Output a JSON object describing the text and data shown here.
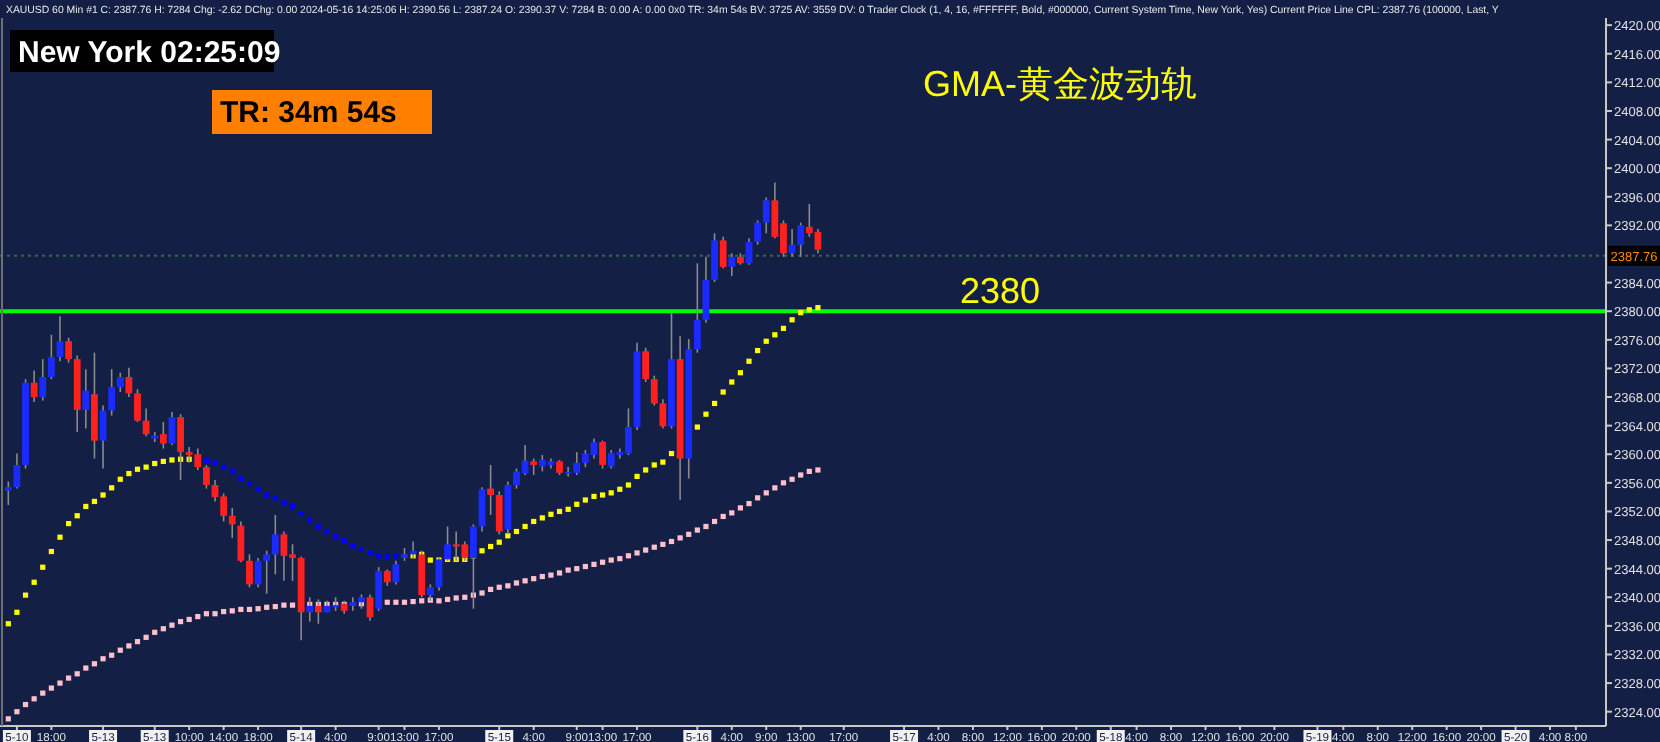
{
  "chart_data": {
    "type": "candlestick",
    "title": "GMA-黄金波动轨",
    "annotations": [
      "XAUUSD  60 Min  #1  C: 2387.76  H: 7284  Chg: -2.62  DChg: 0.00  2024-05-16 14:25:06  H: 2390.56  L: 2387.24  O: 2390.37  V: 7284  B: 0.00  A: 0.00  0x0  TR: 34m 54s  BV: 3725  AV: 3559  DV: 0  Trader Clock  (1, 4, 16, #FFFFFF, Bold, #000000, Current System Time, New York, Yes)  Current Price Line  CPL: 2387.76  (100000, Last, Y",
      "New York 02:25:09",
      "TR: 34m 54s"
    ],
    "categories": [
      null,
      "5-10",
      null,
      null,
      null,
      "18:00",
      null,
      null,
      null,
      null,
      null,
      "5-13",
      null,
      null,
      null,
      null,
      null,
      "5-13",
      null,
      null,
      null,
      "10:00",
      null,
      null,
      null,
      "14:00",
      null,
      null,
      null,
      "18:00",
      null,
      null,
      null,
      null,
      "5-14",
      null,
      null,
      null,
      "4:00",
      null,
      null,
      null,
      null,
      "9:00",
      null,
      null,
      "13:00",
      null,
      null,
      null,
      "17:00",
      null,
      null,
      null,
      null,
      null,
      null,
      "5-15",
      null,
      null,
      null,
      "4:00",
      null,
      null,
      null,
      null,
      "9:00",
      null,
      null,
      "13:00",
      null,
      null,
      null,
      "17:00",
      null,
      null,
      null,
      null,
      null,
      null,
      "5-16",
      null,
      null,
      null,
      "4:00",
      null,
      null,
      null,
      "9:00",
      null,
      null,
      null,
      "13:00",
      null,
      null,
      null,
      null,
      "17:00",
      null,
      null,
      null,
      null,
      null,
      null,
      "5-17",
      null,
      null,
      null,
      "4:00",
      null,
      null,
      null,
      "8:00",
      null,
      null,
      null,
      "12:00",
      null,
      null,
      null,
      "16:00",
      null,
      null,
      null,
      "20:00",
      null,
      null,
      null,
      "5-18",
      null,
      null,
      "4:00",
      null,
      null,
      null,
      "8:00",
      null,
      null,
      null,
      "12:00",
      null,
      null,
      null,
      "16:00",
      null,
      null,
      null,
      "20:00",
      null,
      null,
      null,
      null,
      "5-19",
      null,
      null,
      "4:00",
      null,
      null,
      null,
      "8:00",
      null,
      null,
      null,
      "12:00",
      null,
      null,
      null,
      "16:00",
      null,
      null,
      null,
      "20:00",
      null,
      null,
      null,
      "5-20",
      null,
      null,
      null,
      "4:00",
      null,
      null,
      "8:00",
      null,
      null,
      null
    ],
    "ohlc": [
      [
        2354.9,
        2356.2,
        2352.9,
        2355.4
      ],
      [
        2355.4,
        2360.1,
        2355.2,
        2358.5
      ],
      [
        2358.5,
        2370.5,
        2358.0,
        2370.0
      ],
      [
        2370.0,
        2371.7,
        2367.3,
        2368.0
      ],
      [
        2368.0,
        2373.3,
        2367.5,
        2370.8
      ],
      [
        2370.8,
        2376.7,
        2370.5,
        2373.6
      ],
      [
        2373.6,
        2379.3,
        2373.0,
        2375.8
      ],
      [
        2375.8,
        2376.3,
        2372.8,
        2373.3
      ],
      [
        2373.3,
        2373.8,
        2363.1,
        2366.2
      ],
      [
        2366.2,
        2371.9,
        2363.6,
        2368.9
      ],
      [
        2368.4,
        2374.2,
        2359.4,
        2361.9
      ],
      [
        2361.9,
        2366.8,
        2358.0,
        2366.1
      ],
      [
        2366.1,
        2371.9,
        2365.4,
        2369.4
      ],
      [
        2369.4,
        2371.4,
        2368.7,
        2370.8
      ],
      [
        2370.8,
        2372.1,
        2368.0,
        2368.5
      ],
      [
        2368.5,
        2369.1,
        2364.5,
        2364.7
      ],
      [
        2364.7,
        2366.4,
        2362.5,
        2362.8
      ],
      [
        2362.2,
        2363.1,
        2361.7,
        2362.6
      ],
      [
        2362.8,
        2364.5,
        2360.8,
        2361.5
      ],
      [
        2361.5,
        2365.9,
        2361.3,
        2365.2
      ],
      [
        2365.2,
        2365.6,
        2356.4,
        2360.3
      ],
      [
        2360.3,
        2361.0,
        2358.8,
        2359.9
      ],
      [
        2360.0,
        2360.8,
        2357.8,
        2358.2
      ],
      [
        2358.2,
        2358.5,
        2355.2,
        2355.7
      ],
      [
        2355.7,
        2356.4,
        2353.4,
        2354.0
      ],
      [
        2354.1,
        2354.5,
        2350.6,
        2351.4
      ],
      [
        2351.4,
        2352.5,
        2348.3,
        2350.2
      ],
      [
        2350.0,
        2350.6,
        2344.9,
        2345.1
      ],
      [
        2345.1,
        2346.0,
        2341.4,
        2341.8
      ],
      [
        2341.8,
        2345.5,
        2341.4,
        2345.1
      ],
      [
        2345.1,
        2346.5,
        2340.5,
        2346.0
      ],
      [
        2346.0,
        2351.5,
        2343.2,
        2348.8
      ],
      [
        2348.8,
        2349.2,
        2342.3,
        2345.8
      ],
      [
        2346.0,
        2347.4,
        2342.3,
        2345.5
      ],
      [
        2345.5,
        2345.7,
        2334.0,
        2337.9
      ],
      [
        2337.9,
        2340.0,
        2336.6,
        2338.8
      ],
      [
        2338.8,
        2339.7,
        2336.3,
        2337.9
      ],
      [
        2337.9,
        2339.5,
        2337.9,
        2338.8
      ],
      [
        2338.6,
        2340.0,
        2338.1,
        2338.9
      ],
      [
        2339.1,
        2339.5,
        2337.7,
        2338.1
      ],
      [
        2338.8,
        2340.0,
        2338.1,
        2339.3
      ],
      [
        2339.3,
        2340.4,
        2338.4,
        2340.0
      ],
      [
        2340.0,
        2340.4,
        2336.7,
        2337.2
      ],
      [
        2338.4,
        2344.2,
        2338.1,
        2343.7
      ],
      [
        2343.7,
        2343.9,
        2341.6,
        2342.1
      ],
      [
        2342.1,
        2345.1,
        2341.8,
        2344.6
      ],
      [
        2345.5,
        2346.9,
        2345.1,
        2346.0
      ],
      [
        2346.0,
        2347.8,
        2345.5,
        2346.5
      ],
      [
        2346.0,
        2346.5,
        2340.0,
        2340.3
      ],
      [
        2340.3,
        2341.8,
        2339.5,
        2341.4
      ],
      [
        2341.4,
        2345.6,
        2340.9,
        2345.3
      ],
      [
        2345.3,
        2349.9,
        2345.1,
        2347.4
      ],
      [
        2347.4,
        2349.2,
        2345.1,
        2347.1
      ],
      [
        2347.4,
        2347.8,
        2345.1,
        2345.5
      ],
      [
        2345.5,
        2350.2,
        2338.4,
        2349.9
      ],
      [
        2349.9,
        2355.4,
        2349.2,
        2355.1
      ],
      [
        2355.2,
        2358.5,
        2351.5,
        2354.3
      ],
      [
        2354.3,
        2354.8,
        2348.8,
        2349.2
      ],
      [
        2349.5,
        2356.2,
        2348.8,
        2355.7
      ],
      [
        2355.7,
        2358.0,
        2355.2,
        2357.6
      ],
      [
        2357.3,
        2361.3,
        2357.1,
        2359.1
      ],
      [
        2359.0,
        2359.4,
        2357.1,
        2358.5
      ],
      [
        2358.3,
        2359.9,
        2357.6,
        2359.2
      ],
      [
        2358.5,
        2359.4,
        2358.0,
        2359.0
      ],
      [
        2359.0,
        2359.2,
        2357.1,
        2357.4
      ],
      [
        2357.3,
        2358.2,
        2356.9,
        2357.5
      ],
      [
        2357.4,
        2360.3,
        2357.1,
        2358.8
      ],
      [
        2358.8,
        2360.6,
        2358.2,
        2360.1
      ],
      [
        2359.9,
        2362.2,
        2359.4,
        2361.7
      ],
      [
        2361.7,
        2361.9,
        2358.0,
        2358.5
      ],
      [
        2358.3,
        2360.6,
        2358.0,
        2360.2
      ],
      [
        2359.9,
        2360.8,
        2359.4,
        2360.3
      ],
      [
        2360.1,
        2366.4,
        2359.9,
        2363.8
      ],
      [
        2363.8,
        2375.6,
        2363.4,
        2374.4
      ],
      [
        2374.4,
        2374.9,
        2370.1,
        2370.5
      ],
      [
        2370.5,
        2371.0,
        2366.8,
        2367.1
      ],
      [
        2367.1,
        2367.7,
        2363.6,
        2363.9
      ],
      [
        2363.9,
        2379.8,
        2363.6,
        2373.3
      ],
      [
        2373.3,
        2376.5,
        2353.6,
        2359.4
      ],
      [
        2359.4,
        2376.1,
        2356.6,
        2374.7
      ],
      [
        2374.7,
        2386.7,
        2374.2,
        2378.8
      ],
      [
        2378.8,
        2387.6,
        2378.4,
        2384.4
      ],
      [
        2384.4,
        2390.9,
        2384.1,
        2389.9
      ],
      [
        2389.9,
        2390.4,
        2386.0,
        2386.2
      ],
      [
        2386.2,
        2388.1,
        2384.9,
        2387.6
      ],
      [
        2387.6,
        2388.1,
        2386.5,
        2386.7
      ],
      [
        2386.7,
        2390.2,
        2386.5,
        2389.7
      ],
      [
        2389.7,
        2392.7,
        2389.3,
        2392.4
      ],
      [
        2392.4,
        2395.9,
        2390.9,
        2395.5
      ],
      [
        2395.5,
        2398.0,
        2390.2,
        2390.4
      ],
      [
        2392.3,
        2392.7,
        2387.6,
        2388.1
      ],
      [
        2388.1,
        2391.5,
        2387.6,
        2389.3
      ],
      [
        2389.3,
        2392.4,
        2387.6,
        2392.0
      ],
      [
        2391.8,
        2395.0,
        2390.4,
        2390.9
      ],
      [
        2391.1,
        2391.5,
        2388.1,
        2388.6
      ],
      null,
      null,
      null,
      null,
      null,
      null,
      null,
      null,
      null,
      null,
      null,
      null,
      null,
      null,
      null,
      null,
      null,
      null,
      null,
      null,
      null,
      null,
      null,
      null,
      null,
      null,
      null,
      null,
      null,
      null,
      null,
      null,
      null,
      null,
      null,
      null,
      null,
      null,
      null,
      null,
      null,
      null,
      null,
      null,
      null,
      null,
      null,
      null,
      null,
      null,
      null,
      null,
      null,
      null,
      null,
      null,
      null,
      null,
      null,
      null,
      null,
      null,
      null,
      null,
      null,
      null,
      null,
      null,
      null,
      null,
      null,
      null,
      null,
      null,
      null,
      null,
      null,
      null,
      null,
      null,
      null,
      null,
      null,
      null,
      null,
      null,
      null,
      null,
      null,
      null,
      null
    ],
    "series": [
      {
        "type": "scatter",
        "marker": "square",
        "color": "#ffff00",
        "values": [
          2336.3,
          2337.9,
          2340.3,
          2342.1,
          2344.2,
          2346.4,
          2348.4,
          2350.3,
          2351.4,
          2352.7,
          2353.4,
          2354.3,
          2355.3,
          2356.5,
          2357.3,
          2357.9,
          2358.2,
          2358.7,
          2359.0,
          2359.2,
          2359.3,
          2359.3,
          null,
          null,
          null,
          null,
          null,
          null,
          null,
          null,
          null,
          null,
          null,
          null,
          null,
          null,
          null,
          null,
          null,
          null,
          null,
          null,
          null,
          null,
          null,
          null,
          null,
          2345.8,
          2346.0,
          2345.2,
          2345.2,
          2345.3,
          2345.3,
          2345.3,
          2345.8,
          2346.5,
          2347.1,
          2347.7,
          2348.6,
          2349.2,
          2349.9,
          2350.6,
          2351.1,
          2351.6,
          2352.0,
          2352.3,
          2353.0,
          2353.6,
          2354.1,
          2354.3,
          2354.6,
          2355.1,
          2355.7,
          2356.9,
          2357.8,
          2358.5,
          2358.9,
          2360.1,
          null,
          null,
          2363.8,
          2365.6,
          2367.1,
          2368.7,
          2370.1,
          2371.4,
          2373.0,
          2374.5,
          2375.8,
          2376.7,
          2377.6,
          2378.8,
          2379.8,
          2380.2,
          2380.5,
          null,
          null,
          null,
          null,
          null,
          null,
          null,
          null,
          null,
          null,
          null,
          null,
          null,
          null,
          null,
          null,
          null,
          null,
          null,
          null,
          null,
          null,
          null,
          null,
          null,
          null,
          null,
          null,
          null,
          null,
          null,
          null,
          null,
          null,
          null,
          null,
          null,
          null,
          null,
          null,
          null,
          null,
          null,
          null,
          null,
          null,
          null,
          null,
          null,
          null,
          null,
          null,
          null,
          null,
          null,
          null,
          null,
          null,
          null,
          null,
          null,
          null,
          null,
          null,
          null,
          null,
          null,
          null,
          null,
          null,
          null,
          null,
          null,
          null,
          null,
          null,
          null,
          null,
          null,
          null,
          null,
          null,
          null,
          null,
          null,
          null,
          null,
          null,
          null,
          null,
          null
        ]
      },
      {
        "type": "scatter",
        "marker": "square",
        "color": "#0000ff",
        "values": [
          null,
          null,
          null,
          null,
          null,
          null,
          null,
          null,
          null,
          null,
          null,
          null,
          null,
          null,
          null,
          null,
          null,
          null,
          null,
          null,
          null,
          null,
          null,
          2359.1,
          2358.8,
          2358.2,
          2357.6,
          2356.6,
          2355.9,
          2355.1,
          2354.3,
          2353.9,
          2353.2,
          2352.7,
          2351.7,
          2350.8,
          2349.9,
          2349.2,
          2348.5,
          2347.9,
          2347.2,
          2346.7,
          2346.2,
          2345.8,
          2345.7,
          2345.8,
          null,
          null,
          null,
          null,
          null,
          null,
          null,
          null,
          null,
          null,
          null,
          null,
          null,
          null,
          null,
          null,
          null,
          null,
          null,
          null,
          null,
          null,
          null,
          null,
          null,
          null,
          null,
          null,
          null,
          null,
          null,
          null,
          null,
          null,
          null,
          null,
          null,
          null,
          null,
          null,
          null,
          null,
          null,
          null,
          null,
          null,
          null,
          null,
          null,
          null,
          null,
          null,
          null,
          null,
          null,
          null,
          null,
          null,
          null,
          null,
          null,
          null,
          null,
          null,
          null,
          null,
          null,
          null,
          null,
          null,
          null,
          null,
          null,
          null,
          null,
          null,
          null,
          null,
          null,
          null,
          null,
          null,
          null,
          null,
          null,
          null,
          null,
          null,
          null,
          null,
          null,
          null,
          null,
          null,
          null,
          null,
          null,
          null,
          null,
          null,
          null,
          null,
          null,
          null,
          null,
          null,
          null,
          null,
          null,
          null,
          null,
          null,
          null,
          null,
          null,
          null,
          null,
          null,
          null,
          null,
          null,
          null,
          null,
          null,
          null,
          null,
          null,
          null,
          null,
          null,
          null,
          null,
          null,
          null,
          null,
          null,
          null,
          null,
          null,
          null
        ]
      },
      {
        "type": "scatter",
        "marker": "square",
        "color": "#ffc0cb",
        "values": [
          2323.0,
          2324.0,
          2325.0,
          2325.8,
          2326.6,
          2327.3,
          2328.0,
          2328.7,
          2329.3,
          2330.1,
          2330.7,
          2331.4,
          2331.9,
          2332.6,
          2333.2,
          2333.8,
          2334.4,
          2335.1,
          2335.6,
          2336.1,
          2336.6,
          2336.9,
          2337.3,
          2337.7,
          2337.7,
          2338.0,
          2338.1,
          2338.3,
          2338.3,
          2338.4,
          2338.6,
          2338.7,
          2338.9,
          2338.9,
          null,
          2339.0,
          2339.0,
          2339.0,
          2339.0,
          2339.0,
          null,
          2339.1,
          null,
          null,
          2339.3,
          2339.3,
          2339.3,
          2339.4,
          2339.5,
          2339.6,
          2339.5,
          2339.7,
          2339.9,
          2340.0,
          2340.3,
          2340.6,
          2341.1,
          2341.4,
          2341.6,
          2342.0,
          2342.3,
          2342.6,
          2342.9,
          2343.1,
          2343.4,
          2343.8,
          2344.0,
          2344.3,
          2344.6,
          2344.9,
          2345.2,
          2345.4,
          2345.8,
          2346.2,
          2346.6,
          2347.0,
          2347.4,
          2347.8,
          2348.3,
          2348.8,
          2349.4,
          2349.9,
          2350.6,
          2351.3,
          2351.8,
          2352.5,
          2353.1,
          2353.9,
          2354.6,
          2355.3,
          2356.0,
          2356.5,
          2357.1,
          2357.6,
          2357.8,
          null,
          null,
          null,
          null,
          null,
          null,
          null,
          null,
          null,
          null,
          null,
          null,
          null,
          null,
          null,
          null,
          null,
          null,
          null,
          null,
          null,
          null,
          null,
          null,
          null,
          null,
          null,
          null,
          null,
          null,
          null,
          null,
          null,
          null,
          null,
          null,
          null,
          null,
          null,
          null,
          null,
          null,
          null,
          null,
          null,
          null,
          null,
          null,
          null,
          null,
          null,
          null,
          null,
          null,
          null,
          null,
          null,
          null,
          null,
          null,
          null,
          null,
          null,
          null,
          null,
          null,
          null,
          null,
          null,
          null,
          null,
          null,
          null,
          null,
          null,
          null,
          null,
          null,
          null,
          null,
          null,
          null,
          null,
          null,
          null,
          null,
          null,
          null,
          null,
          null,
          null
        ]
      }
    ],
    "ref_lines": [
      {
        "axis": "y",
        "value": 2380,
        "label": "2380",
        "color": "#00ff00",
        "line_style": "solid"
      },
      {
        "axis": "y",
        "value": 2387.76,
        "label": "2387.76",
        "color": "#2f6b45",
        "line_style": "dotted"
      }
    ],
    "ylim": [
      2322,
      2421
    ],
    "yticks": [
      {
        "value": 2324,
        "label": "2324.00"
      },
      {
        "value": 2328,
        "label": "2328.00"
      },
      {
        "value": 2332,
        "label": "2332.00"
      },
      {
        "value": 2336,
        "label": "2336.00"
      },
      {
        "value": 2340,
        "label": "2340.00"
      },
      {
        "value": 2344,
        "label": "2344.00"
      },
      {
        "value": 2348,
        "label": "2348.00"
      },
      {
        "value": 2352,
        "label": "2352.00"
      },
      {
        "value": 2356,
        "label": "2356.00"
      },
      {
        "value": 2360,
        "label": "2360.00"
      },
      {
        "value": 2364,
        "label": "2364.00"
      },
      {
        "value": 2368,
        "label": "2368.00"
      },
      {
        "value": 2372,
        "label": "2372.00"
      },
      {
        "value": 2376,
        "label": "2376.00"
      },
      {
        "value": 2380,
        "label": "2380.00"
      },
      {
        "value": 2384,
        "label": "2384.00"
      },
      {
        "value": 2392,
        "label": "2392.00"
      },
      {
        "value": 2396,
        "label": "2396.00"
      },
      {
        "value": 2400,
        "label": "2400.00"
      },
      {
        "value": 2404,
        "label": "2404.00"
      },
      {
        "value": 2408,
        "label": "2408.00"
      },
      {
        "value": 2412,
        "label": "2412.00"
      },
      {
        "value": 2416,
        "label": "2416.00"
      },
      {
        "value": 2420,
        "label": "2420.00"
      }
    ]
  }
}
